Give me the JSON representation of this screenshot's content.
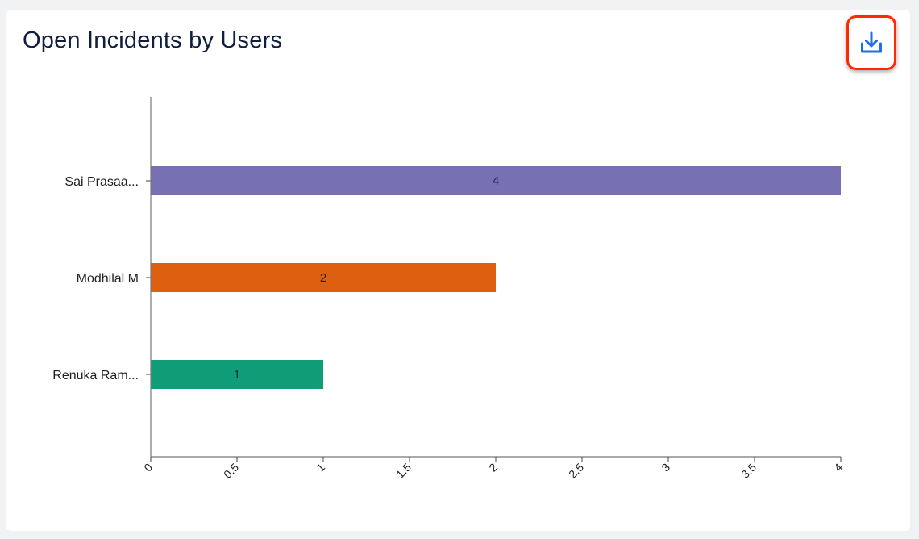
{
  "card": {
    "title": "Open Incidents by Users",
    "download_icon": "download-icon"
  },
  "chart_data": {
    "type": "bar",
    "orientation": "horizontal",
    "categories": [
      "Sai Prasaa...",
      "Modhilal M",
      "Renuka Ram..."
    ],
    "values": [
      4,
      2,
      1
    ],
    "data_labels": [
      "4",
      "2",
      "1"
    ],
    "colors": [
      "#7771b3",
      "#dd5f0f",
      "#0f9d78"
    ],
    "xlim": [
      0,
      4
    ],
    "xticks": [
      "0",
      "0.5",
      "1",
      "1.5",
      "2",
      "2.5",
      "3",
      "3.5",
      "4"
    ],
    "title": "Open Incidents by Users",
    "xlabel": "",
    "ylabel": "",
    "grid": false,
    "legend": "none"
  }
}
